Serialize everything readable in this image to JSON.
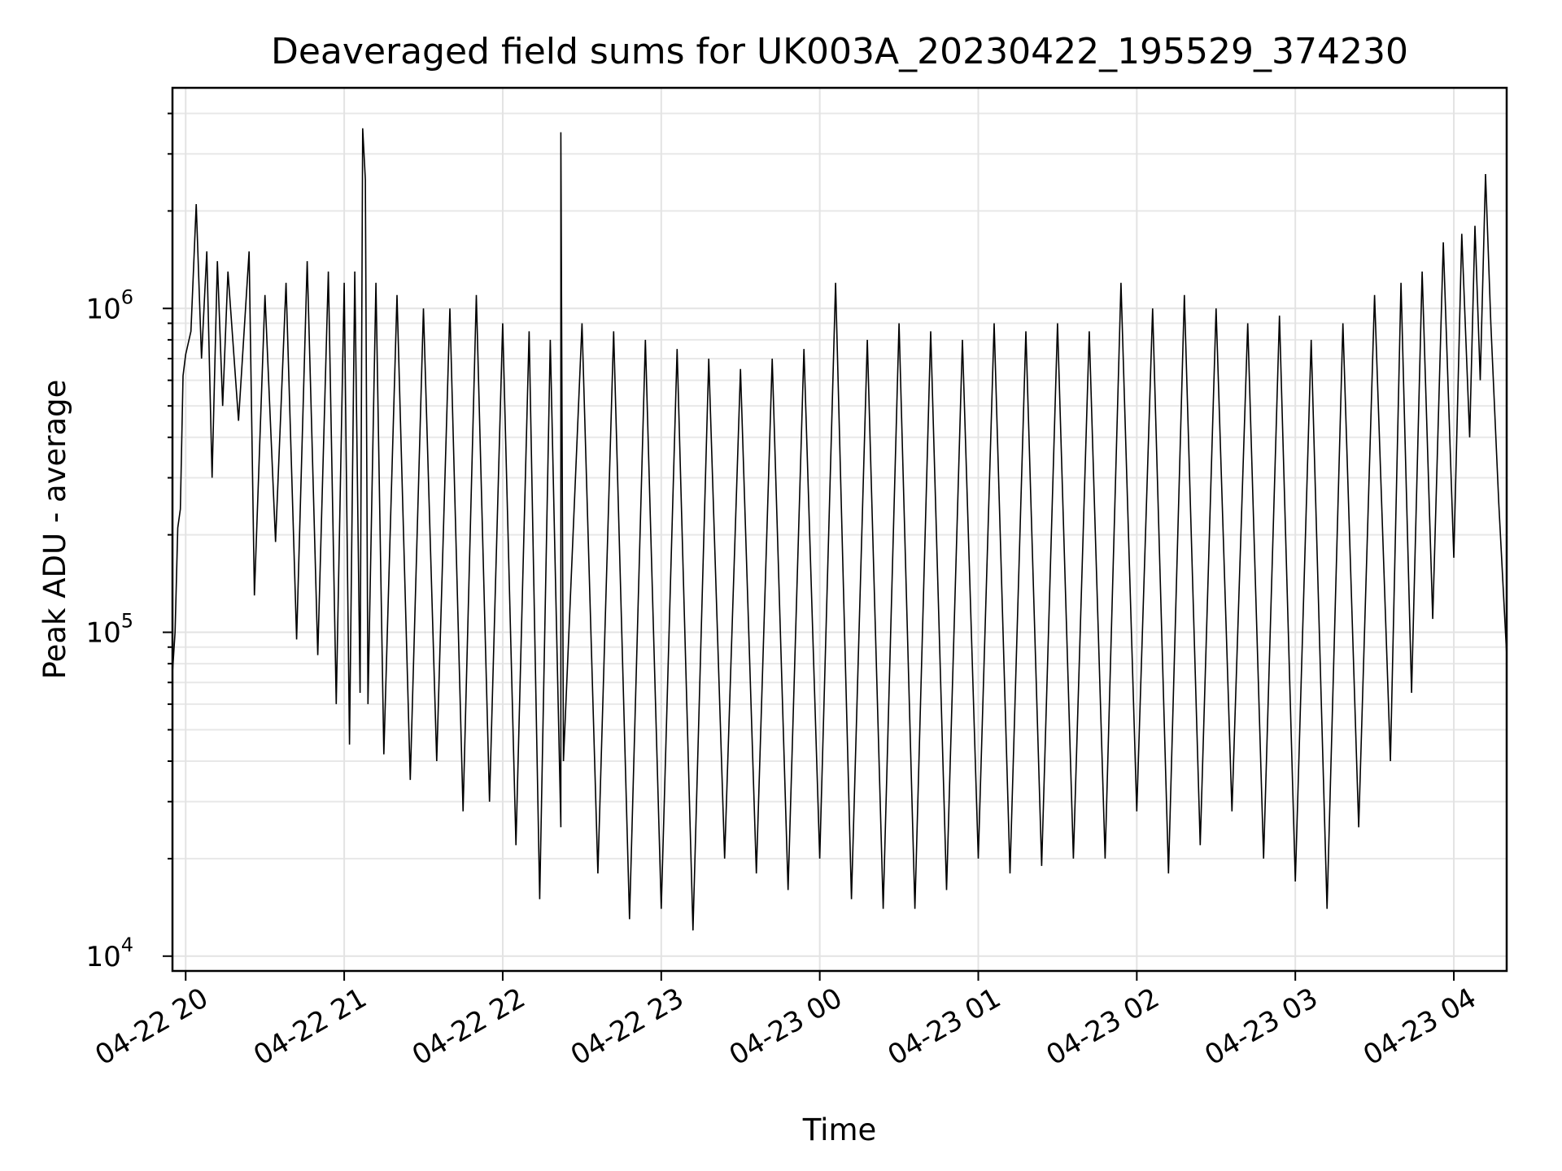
{
  "chart_data": {
    "type": "line",
    "title": "Deaveraged field sums for UK003A_20230422_195529_374230",
    "xlabel": "Time",
    "ylabel": "Peak ADU - average",
    "yscale": "log",
    "ylim": [
      9000,
      4800000
    ],
    "xlim": [
      "2023-04-22T19:55",
      "2023-04-23T04:20"
    ],
    "grid": true,
    "line_color": "#000000",
    "x_ticks": [
      {
        "value": "2023-04-22T20:00",
        "label": "04-22 20"
      },
      {
        "value": "2023-04-22T21:00",
        "label": "04-22 21"
      },
      {
        "value": "2023-04-22T22:00",
        "label": "04-22 22"
      },
      {
        "value": "2023-04-22T23:00",
        "label": "04-22 23"
      },
      {
        "value": "2023-04-23T00:00",
        "label": "04-23 00"
      },
      {
        "value": "2023-04-23T01:00",
        "label": "04-23 01"
      },
      {
        "value": "2023-04-23T02:00",
        "label": "04-23 02"
      },
      {
        "value": "2023-04-23T03:00",
        "label": "04-23 03"
      },
      {
        "value": "2023-04-23T04:00",
        "label": "04-23 04"
      }
    ],
    "y_ticks": [
      {
        "value": 10000,
        "base": "10",
        "exp": "4"
      },
      {
        "value": 100000,
        "base": "10",
        "exp": "5"
      },
      {
        "value": 1000000,
        "base": "10",
        "exp": "6"
      }
    ],
    "series": [
      {
        "points": [
          [
            "2023-04-22T19:55",
            75000
          ],
          [
            "2023-04-22T19:56",
            100000
          ],
          [
            "2023-04-22T19:57",
            210000
          ],
          [
            "2023-04-22T19:58",
            240000
          ],
          [
            "2023-04-22T19:59",
            620000
          ],
          [
            "2023-04-22T20:00",
            720000
          ],
          [
            "2023-04-22T20:02",
            850000
          ],
          [
            "2023-04-22T20:04",
            2100000
          ],
          [
            "2023-04-22T20:06",
            700000
          ],
          [
            "2023-04-22T20:08",
            1500000
          ],
          [
            "2023-04-22T20:10",
            300000
          ],
          [
            "2023-04-22T20:12",
            1400000
          ],
          [
            "2023-04-22T20:14",
            500000
          ],
          [
            "2023-04-22T20:16",
            1300000
          ],
          [
            "2023-04-22T20:20",
            450000
          ],
          [
            "2023-04-22T20:24",
            1500000
          ],
          [
            "2023-04-22T20:26",
            130000
          ],
          [
            "2023-04-22T20:30",
            1100000
          ],
          [
            "2023-04-22T20:34",
            190000
          ],
          [
            "2023-04-22T20:38",
            1200000
          ],
          [
            "2023-04-22T20:42",
            95000
          ],
          [
            "2023-04-22T20:46",
            1400000
          ],
          [
            "2023-04-22T20:50",
            85000
          ],
          [
            "2023-04-22T20:54",
            1300000
          ],
          [
            "2023-04-22T20:57",
            60000
          ],
          [
            "2023-04-22T21:00",
            1200000
          ],
          [
            "2023-04-22T21:02",
            45000
          ],
          [
            "2023-04-22T21:04",
            1300000
          ],
          [
            "2023-04-22T21:06",
            65000
          ],
          [
            "2023-04-22T21:07",
            3600000
          ],
          [
            "2023-04-22T21:08",
            2500000
          ],
          [
            "2023-04-22T21:09",
            60000
          ],
          [
            "2023-04-22T21:12",
            1200000
          ],
          [
            "2023-04-22T21:15",
            42000
          ],
          [
            "2023-04-22T21:20",
            1100000
          ],
          [
            "2023-04-22T21:25",
            35000
          ],
          [
            "2023-04-22T21:30",
            1000000
          ],
          [
            "2023-04-22T21:35",
            40000
          ],
          [
            "2023-04-22T21:40",
            1000000
          ],
          [
            "2023-04-22T21:45",
            28000
          ],
          [
            "2023-04-22T21:50",
            1100000
          ],
          [
            "2023-04-22T21:55",
            30000
          ],
          [
            "2023-04-22T22:00",
            900000
          ],
          [
            "2023-04-22T22:05",
            22000
          ],
          [
            "2023-04-22T22:10",
            850000
          ],
          [
            "2023-04-22T22:14",
            15000
          ],
          [
            "2023-04-22T22:18",
            800000
          ],
          [
            "2023-04-22T22:22",
            25000
          ],
          [
            "2023-04-22T22:22",
            3500000
          ],
          [
            "2023-04-22T22:23",
            40000
          ],
          [
            "2023-04-22T22:30",
            900000
          ],
          [
            "2023-04-22T22:36",
            18000
          ],
          [
            "2023-04-22T22:42",
            850000
          ],
          [
            "2023-04-22T22:48",
            13000
          ],
          [
            "2023-04-22T22:54",
            800000
          ],
          [
            "2023-04-22T23:00",
            14000
          ],
          [
            "2023-04-22T23:06",
            750000
          ],
          [
            "2023-04-22T23:12",
            12000
          ],
          [
            "2023-04-22T23:18",
            700000
          ],
          [
            "2023-04-22T23:24",
            20000
          ],
          [
            "2023-04-22T23:30",
            650000
          ],
          [
            "2023-04-22T23:36",
            18000
          ],
          [
            "2023-04-22T23:42",
            700000
          ],
          [
            "2023-04-22T23:48",
            16000
          ],
          [
            "2023-04-22T23:54",
            750000
          ],
          [
            "2023-04-23T00:00",
            20000
          ],
          [
            "2023-04-23T00:06",
            1200000
          ],
          [
            "2023-04-23T00:12",
            15000
          ],
          [
            "2023-04-23T00:18",
            800000
          ],
          [
            "2023-04-23T00:24",
            14000
          ],
          [
            "2023-04-23T00:30",
            900000
          ],
          [
            "2023-04-23T00:36",
            14000
          ],
          [
            "2023-04-23T00:42",
            850000
          ],
          [
            "2023-04-23T00:48",
            16000
          ],
          [
            "2023-04-23T00:54",
            800000
          ],
          [
            "2023-04-23T01:00",
            20000
          ],
          [
            "2023-04-23T01:06",
            900000
          ],
          [
            "2023-04-23T01:12",
            18000
          ],
          [
            "2023-04-23T01:18",
            850000
          ],
          [
            "2023-04-23T01:24",
            19000
          ],
          [
            "2023-04-23T01:30",
            900000
          ],
          [
            "2023-04-23T01:36",
            20000
          ],
          [
            "2023-04-23T01:42",
            850000
          ],
          [
            "2023-04-23T01:48",
            20000
          ],
          [
            "2023-04-23T01:54",
            1200000
          ],
          [
            "2023-04-23T02:00",
            28000
          ],
          [
            "2023-04-23T02:06",
            1000000
          ],
          [
            "2023-04-23T02:12",
            18000
          ],
          [
            "2023-04-23T02:18",
            1100000
          ],
          [
            "2023-04-23T02:24",
            22000
          ],
          [
            "2023-04-23T02:30",
            1000000
          ],
          [
            "2023-04-23T02:36",
            28000
          ],
          [
            "2023-04-23T02:42",
            900000
          ],
          [
            "2023-04-23T02:48",
            20000
          ],
          [
            "2023-04-23T02:54",
            950000
          ],
          [
            "2023-04-23T03:00",
            17000
          ],
          [
            "2023-04-23T03:06",
            800000
          ],
          [
            "2023-04-23T03:12",
            14000
          ],
          [
            "2023-04-23T03:18",
            900000
          ],
          [
            "2023-04-23T03:24",
            25000
          ],
          [
            "2023-04-23T03:30",
            1100000
          ],
          [
            "2023-04-23T03:36",
            40000
          ],
          [
            "2023-04-23T03:40",
            1200000
          ],
          [
            "2023-04-23T03:44",
            65000
          ],
          [
            "2023-04-23T03:48",
            1300000
          ],
          [
            "2023-04-23T03:52",
            110000
          ],
          [
            "2023-04-23T03:56",
            1600000
          ],
          [
            "2023-04-23T04:00",
            170000
          ],
          [
            "2023-04-23T04:03",
            1700000
          ],
          [
            "2023-04-23T04:06",
            400000
          ],
          [
            "2023-04-23T04:08",
            1800000
          ],
          [
            "2023-04-23T04:10",
            600000
          ],
          [
            "2023-04-23T04:12",
            2600000
          ],
          [
            "2023-04-23T04:14",
            900000
          ],
          [
            "2023-04-23T04:17",
            250000
          ],
          [
            "2023-04-23T04:20",
            85000
          ]
        ]
      }
    ]
  }
}
